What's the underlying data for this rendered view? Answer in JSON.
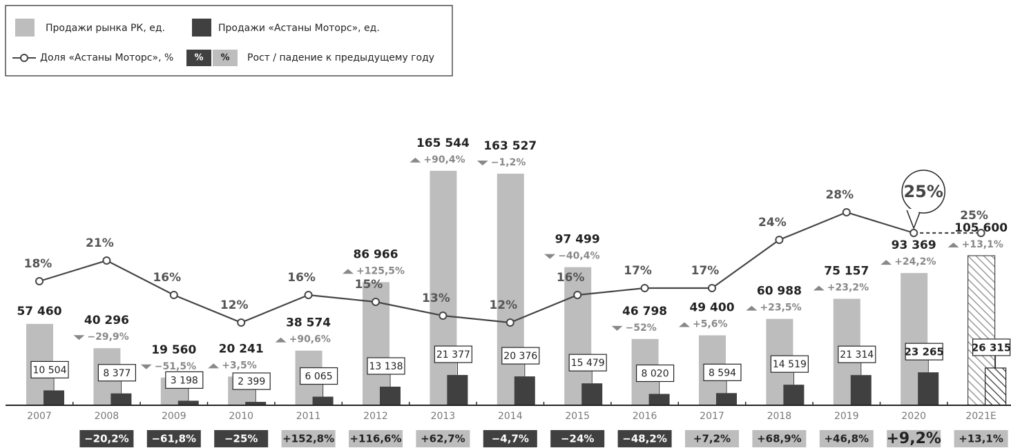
{
  "chart_data": {
    "type": "bar",
    "categories": [
      "2007",
      "2008",
      "2009",
      "2010",
      "2011",
      "2012",
      "2013",
      "2014",
      "2015",
      "2016",
      "2017",
      "2018",
      "2019",
      "2020",
      "2021E"
    ],
    "ylim": [
      0,
      218000
    ],
    "y2lim": [
      0,
      44.8
    ],
    "series": [
      {
        "name": "Продажи рынка РК, ед.",
        "color": "#bdbdbd",
        "values": [
          57460,
          40296,
          19560,
          20241,
          38574,
          86966,
          165544,
          163527,
          97499,
          46798,
          49400,
          60988,
          75157,
          93369,
          105600
        ],
        "value_labels": [
          "57 460",
          "40 296",
          "19 560",
          "20 241",
          "38 574",
          "86 966",
          "165 544",
          "163 527",
          "97 499",
          "46 798",
          "49 400",
          "60 988",
          "75 157",
          "93 369",
          "105 600"
        ]
      },
      {
        "name": "Продажи «Астаны Моторс», ед.",
        "color": "#404040",
        "values": [
          10504,
          8377,
          3198,
          2399,
          6065,
          13138,
          21377,
          20376,
          15479,
          8020,
          8594,
          14519,
          21314,
          23265,
          26315
        ],
        "value_labels": [
          "10 504",
          "8 377",
          "3 198",
          "2 399",
          "6 065",
          "13 138",
          "21 377",
          "20 376",
          "15 479",
          "8 020",
          "8 594",
          "14 519",
          "21 314",
          "23 265",
          "26 315"
        ]
      },
      {
        "name": "Доля «Астаны Моторс», %",
        "color": "#444444",
        "axis": "y2",
        "values": [
          18,
          21,
          16,
          12,
          16,
          15,
          13,
          12,
          16,
          17,
          17,
          24,
          28,
          25,
          25
        ],
        "value_labels": [
          "18%",
          "21%",
          "16%",
          "12%",
          "16%",
          "15%",
          "13%",
          "12%",
          "16%",
          "17%",
          "17%",
          "24%",
          "28%",
          "25%",
          "25%"
        ]
      }
    ],
    "market_growth": {
      "values": [
        null,
        -29.9,
        -51.5,
        3.5,
        90.6,
        125.5,
        90.4,
        -1.2,
        -40.4,
        -52,
        5.6,
        23.5,
        23.2,
        24.2,
        13.1
      ],
      "value_labels": [
        null,
        "−29,9%",
        "−51,5%",
        "+3,5%",
        "+90,6%",
        "+125,5%",
        "+90,4%",
        "−1,2%",
        "−40,4%",
        "−52%",
        "+5,6%",
        "+23,5%",
        "+23,2%",
        "+24,2%",
        "+13,1%"
      ]
    },
    "am_growth": {
      "values": [
        null,
        -20.2,
        -61.8,
        -25,
        152.8,
        116.6,
        62.7,
        -4.7,
        -24,
        -48.2,
        7.2,
        68.9,
        46.8,
        9.2,
        13.1
      ],
      "value_labels": [
        null,
        "−20,2%",
        "−61,8%",
        "−25%",
        "+152,8%",
        "+116,6%",
        "+62,7%",
        "−4,7%",
        "−24%",
        "−48,2%",
        "+7,2%",
        "+68,9%",
        "+46,8%",
        "+9,2%",
        "+13,1%"
      ]
    },
    "legend_growth": {
      "down": "%",
      "up": "%",
      "label": "Рост / падение к предыдущему году"
    },
    "annotation": "25%"
  }
}
